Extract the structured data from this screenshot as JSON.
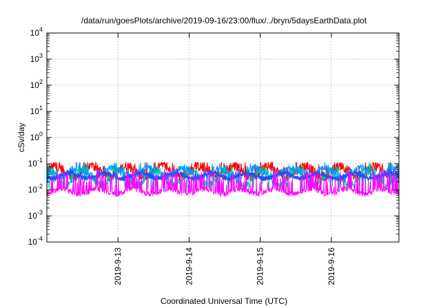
{
  "chart_data": {
    "type": "line",
    "title": "/data/run/goesPlots/archive/2019-09-16/23:00/flux/../bryn/5daysEarthData.plot",
    "xlabel": "Coordinated Universal Time (UTC)",
    "ylabel": "cSv/day",
    "yscale": "log",
    "ylim": [
      0.0001,
      10000
    ],
    "xlim": [
      0,
      4.95
    ],
    "x_unit": "days since 2019-09-12 00:00 UTC",
    "y_ticks": [
      {
        "base": "10",
        "exp": "-4",
        "value": 0.0001
      },
      {
        "base": "10",
        "exp": "-3",
        "value": 0.001
      },
      {
        "base": "10",
        "exp": "-2",
        "value": 0.01
      },
      {
        "base": "10",
        "exp": "-1",
        "value": 0.1
      },
      {
        "base": "10",
        "exp": "0",
        "value": 1
      },
      {
        "base": "10",
        "exp": "1",
        "value": 10
      },
      {
        "base": "10",
        "exp": "2",
        "value": 100
      },
      {
        "base": "10",
        "exp": "3",
        "value": 1000
      },
      {
        "base": "10",
        "exp": "4",
        "value": 10000
      }
    ],
    "x_ticks": [
      {
        "label": "2019-9-13",
        "x": 1
      },
      {
        "label": "2019-9-14",
        "x": 2
      },
      {
        "label": "2019-9-15",
        "x": 3
      },
      {
        "label": "2019-9-16",
        "x": 4
      }
    ],
    "grid": true,
    "series": [
      {
        "color": "#ff0000",
        "width": 1.2,
        "base": 0.05,
        "amp": 0.2,
        "noise": 0.18,
        "spike": 0.38,
        "spikeProb": 0.1,
        "dips": false
      },
      {
        "color": "#00c8a0",
        "width": 1.0,
        "base": 0.03,
        "amp": 0.3,
        "noise": 0.15,
        "spike": 0.3,
        "spikeProb": 0.05,
        "dips": true,
        "dipLevel": 0.012
      },
      {
        "color": "#0096ff",
        "width": 1.0,
        "base": 0.045,
        "amp": 0.18,
        "noise": 0.14,
        "spike": 0.3,
        "spikeProb": 0.08,
        "dips": true,
        "dipLevel": 0.022
      },
      {
        "color": "#1e50ff",
        "width": 1.6,
        "base": 0.034,
        "amp": 0.1,
        "noise": 0.08,
        "spike": 0.12,
        "spikeProb": 0.05,
        "dips": false
      },
      {
        "color": "#ff00ff",
        "width": 1.0,
        "base": 0.0085,
        "amp": 0.1,
        "noise": 0.1,
        "spike": 0.75,
        "spikeProb": 0.22,
        "dips": false
      }
    ]
  }
}
